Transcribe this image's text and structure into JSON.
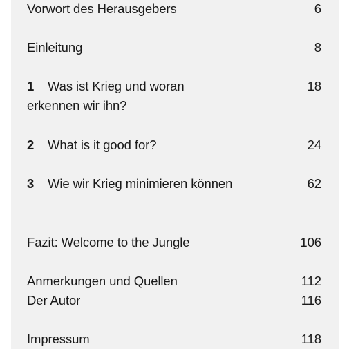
{
  "toc": [
    {
      "number": "",
      "title": "Vorwort des Herausgebers",
      "page": "6"
    },
    {
      "number": "",
      "title": "Einleitung",
      "page": "8"
    },
    {
      "number": "1",
      "title": "Was ist Krieg und woran erkennen wir ihn?",
      "page": "18"
    },
    {
      "number": "2",
      "title": "What is it good for?",
      "page": "24"
    },
    {
      "number": "3",
      "title": "Wie wir Krieg minimieren können",
      "page": "62"
    },
    {
      "number": "",
      "title": "Fazit: Welcome to the Jungle",
      "page": "106"
    },
    {
      "number": "",
      "title": "Anmerkungen und Quellen",
      "page": "112"
    },
    {
      "number": "",
      "title": "Der Autor",
      "page": "116"
    },
    {
      "number": "",
      "title": "Impressum",
      "page": "118"
    }
  ]
}
